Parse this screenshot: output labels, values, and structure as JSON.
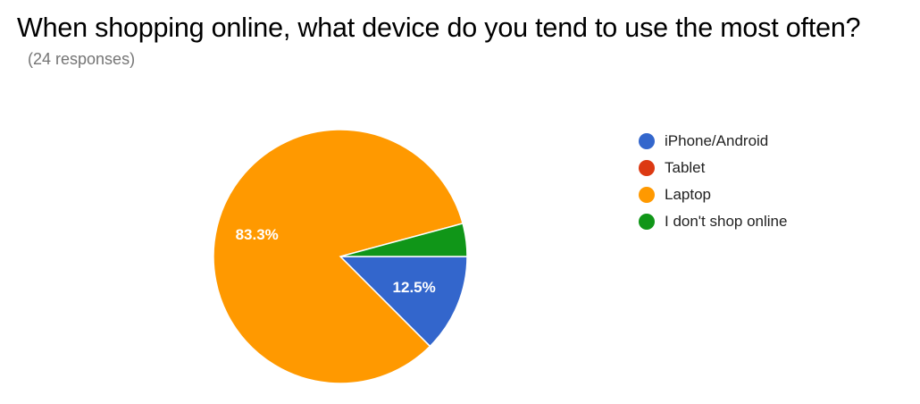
{
  "title": "When shopping online, what device do you tend to use the most often?",
  "subtitle": "(24 responses)",
  "chart_data": {
    "type": "pie",
    "slices": [
      {
        "label": "iPhone/Android",
        "value": 12.5,
        "display": "12.5%",
        "color": "#3366cc"
      },
      {
        "label": "Tablet",
        "value": 0,
        "display": "",
        "color": "#dc3912"
      },
      {
        "label": "Laptop",
        "value": 83.3,
        "display": "83.3%",
        "color": "#ff9900"
      },
      {
        "label": "I don't shop online",
        "value": 4.2,
        "display": "",
        "color": "#109618"
      }
    ],
    "legend_position": "right"
  }
}
